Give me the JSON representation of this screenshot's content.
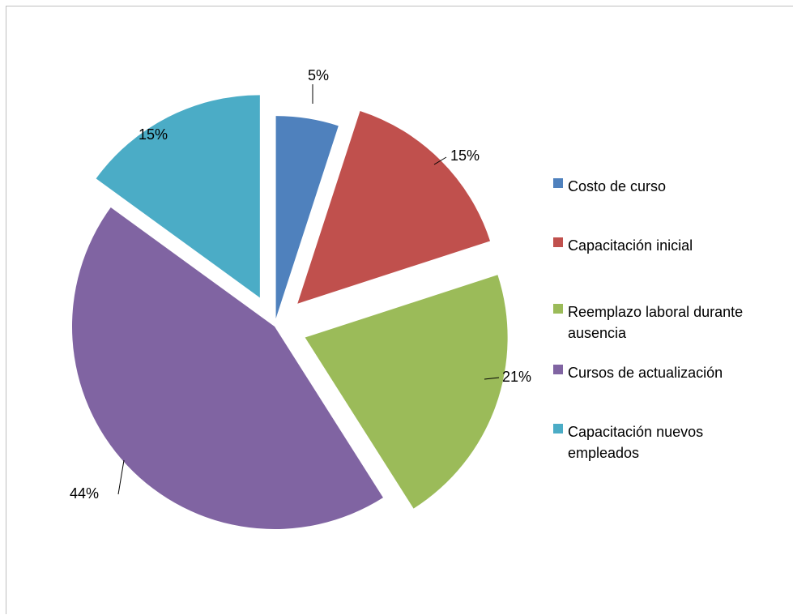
{
  "chart_data": {
    "type": "pie",
    "title": "",
    "categories": [
      "Costo de curso",
      "Capacitación inicial",
      "Reemplazo laboral durante ausencia",
      "Cursos de actualización",
      "Capacitación nuevos empleados"
    ],
    "values": [
      5,
      15,
      21,
      44,
      15
    ],
    "data_labels": [
      "5%",
      "15%",
      "21%",
      "44%",
      "15%"
    ],
    "colors": [
      "#4f81bd",
      "#c0504d",
      "#9bbb59",
      "#8064a2",
      "#4bacc6"
    ],
    "exploded": true,
    "legend": {
      "position": "right",
      "entries": [
        [
          "Costo de curso"
        ],
        [
          "Capacitación inicial"
        ],
        [
          "Reemplazo laboral durante",
          "ausencia"
        ],
        [
          "Cursos de actualización"
        ],
        [
          "Capacitación nuevos",
          "empleados"
        ]
      ]
    }
  }
}
